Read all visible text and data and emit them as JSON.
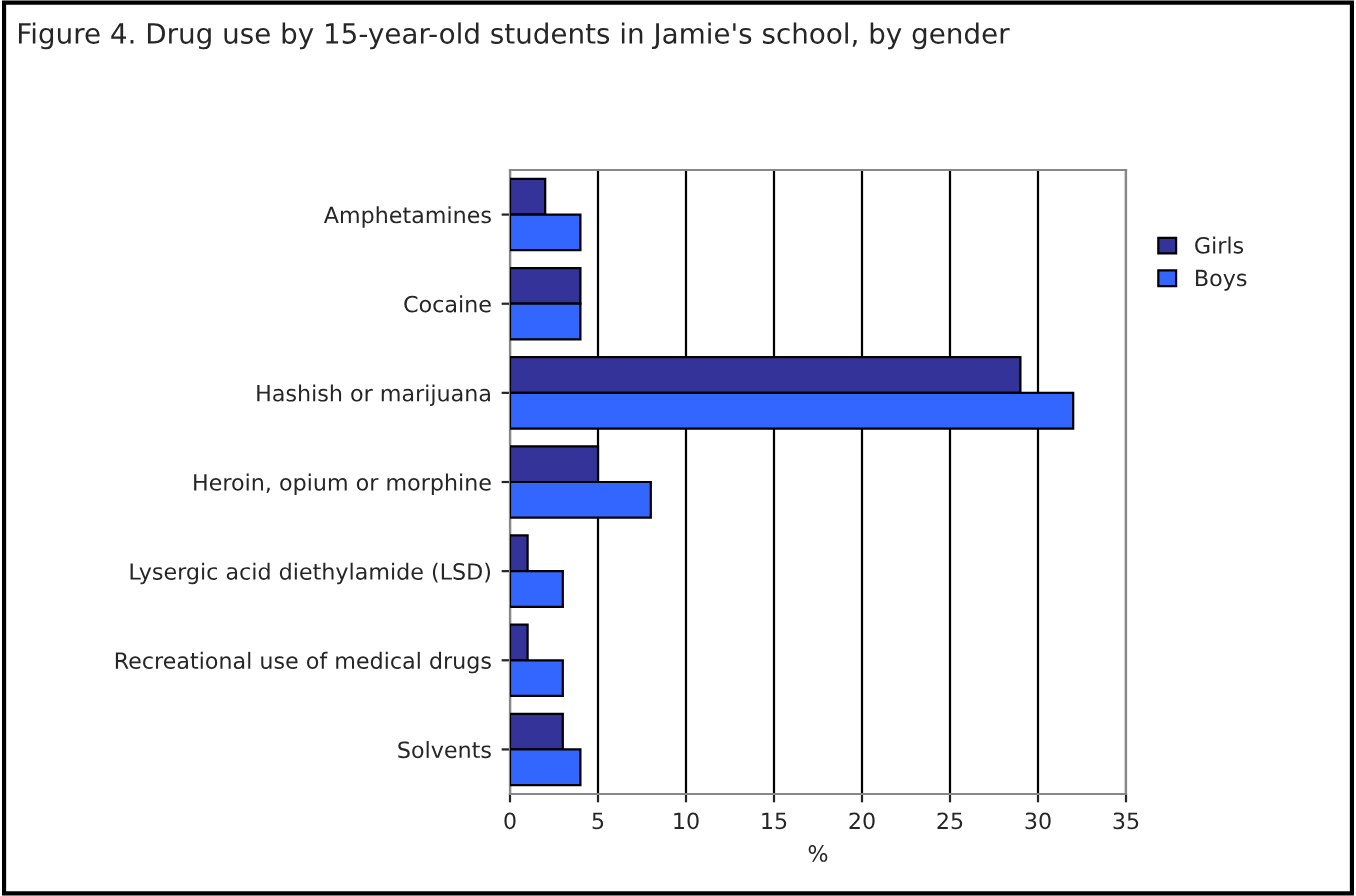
{
  "chart_data": {
    "type": "bar",
    "orientation": "horizontal",
    "title": "Figure 4. Drug use by 15-year-old students in Jamie's school, by gender",
    "xlabel": "%",
    "categories": [
      "Amphetamines",
      "Cocaine",
      "Hashish or marijuana",
      "Heroin, opium or morphine",
      "Lysergic acid diethylamide (LSD)",
      "Recreational use of medical drugs",
      "Solvents"
    ],
    "series": [
      {
        "name": "Girls",
        "color": "#333399",
        "values": [
          2,
          4,
          29,
          5,
          1,
          1,
          3
        ]
      },
      {
        "name": "Boys",
        "color": "#3366ff",
        "values": [
          4,
          4,
          32,
          8,
          3,
          3,
          4
        ]
      }
    ],
    "xlim": [
      0,
      35
    ],
    "xticks": [
      0,
      5,
      10,
      15,
      20,
      25,
      30,
      35
    ],
    "grid": "x",
    "legend": "right"
  }
}
